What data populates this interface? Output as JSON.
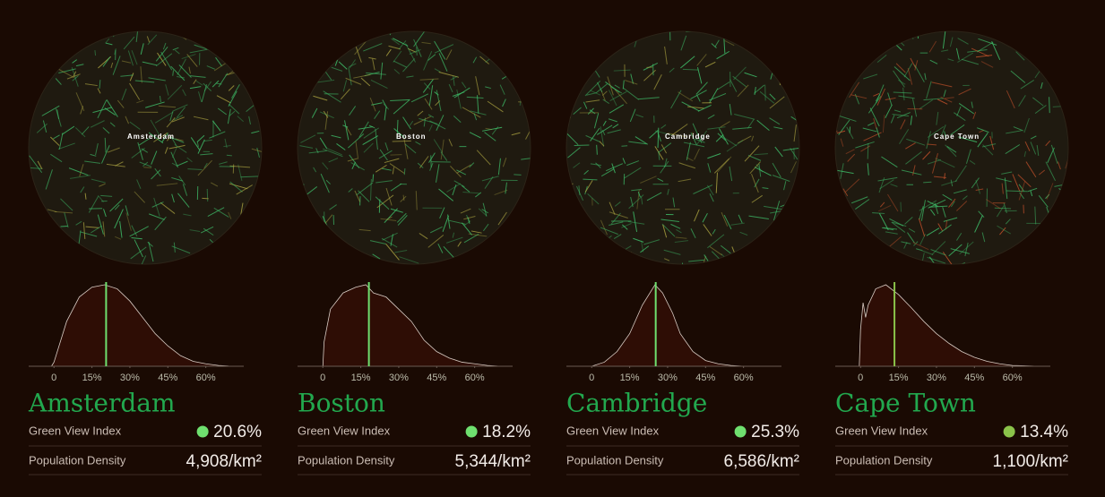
{
  "axis": {
    "xlim": [
      -10,
      75
    ],
    "ylim": [
      0,
      100
    ],
    "xticks": [
      0,
      {
        "value": 15,
        "label": "15%"
      },
      {
        "value": 30,
        "label": "30%"
      },
      {
        "value": 45,
        "label": "45%"
      },
      {
        "value": 60,
        "label": "60%"
      }
    ]
  },
  "cities": [
    {
      "name": "Amsterdam",
      "map_label": "Amsterdam",
      "marker_color": "#6fe06f",
      "gvi": {
        "label": "Green View Index",
        "value": 20.6,
        "value_label": "20.6%"
      },
      "density": {
        "label": "Population Density",
        "value": 4908,
        "value_label": "4,908/km²"
      },
      "distribution": {
        "x": [
          -1,
          0,
          2,
          5,
          10,
          15,
          20,
          25,
          30,
          35,
          40,
          45,
          50,
          55,
          60,
          65,
          70
        ],
        "y": [
          0,
          5,
          25,
          55,
          85,
          97,
          100,
          95,
          80,
          60,
          40,
          25,
          13,
          6,
          3,
          1,
          0
        ]
      }
    },
    {
      "name": "Boston",
      "map_label": "Boston",
      "marker_color": "#6fe06f",
      "gvi": {
        "label": "Green View Index",
        "value": 18.2,
        "value_label": "18.2%"
      },
      "density": {
        "label": "Population Density",
        "value": 5344,
        "value_label": "5,344/km²"
      },
      "distribution": {
        "x": [
          0,
          0.5,
          3,
          8,
          13,
          17,
          20,
          25,
          30,
          35,
          40,
          45,
          50,
          55,
          60,
          65,
          70
        ],
        "y": [
          0,
          30,
          70,
          90,
          97,
          100,
          90,
          85,
          70,
          55,
          32,
          18,
          10,
          5,
          3,
          1,
          0
        ]
      }
    },
    {
      "name": "Cambridge",
      "map_label": "Cambridge",
      "marker_color": "#6fe06f",
      "gvi": {
        "label": "Green View Index",
        "value": 25.3,
        "value_label": "25.3%"
      },
      "density": {
        "label": "Population Density",
        "value": 6586,
        "value_label": "6,586/km²"
      },
      "distribution": {
        "x": [
          0,
          5,
          10,
          15,
          20,
          25,
          28,
          32,
          35,
          40,
          45,
          50,
          55,
          60
        ],
        "y": [
          0,
          5,
          18,
          40,
          75,
          100,
          90,
          65,
          40,
          18,
          7,
          3,
          1,
          0
        ]
      }
    },
    {
      "name": "Cape Town",
      "map_label": "Cape Town",
      "marker_color": "#8bc34a",
      "gvi": {
        "label": "Green View Index",
        "value": 13.4,
        "value_label": "13.4%"
      },
      "density": {
        "label": "Population Density",
        "value": 1100,
        "value_label": "1,100/km²"
      },
      "distribution": {
        "x": [
          -0.5,
          0,
          1,
          2,
          3,
          6,
          10,
          15,
          20,
          25,
          30,
          35,
          40,
          45,
          50,
          55,
          60,
          70
        ],
        "y": [
          0,
          45,
          78,
          60,
          75,
          95,
          100,
          88,
          72,
          55,
          40,
          28,
          18,
          11,
          6,
          3,
          1,
          0
        ]
      }
    }
  ]
}
